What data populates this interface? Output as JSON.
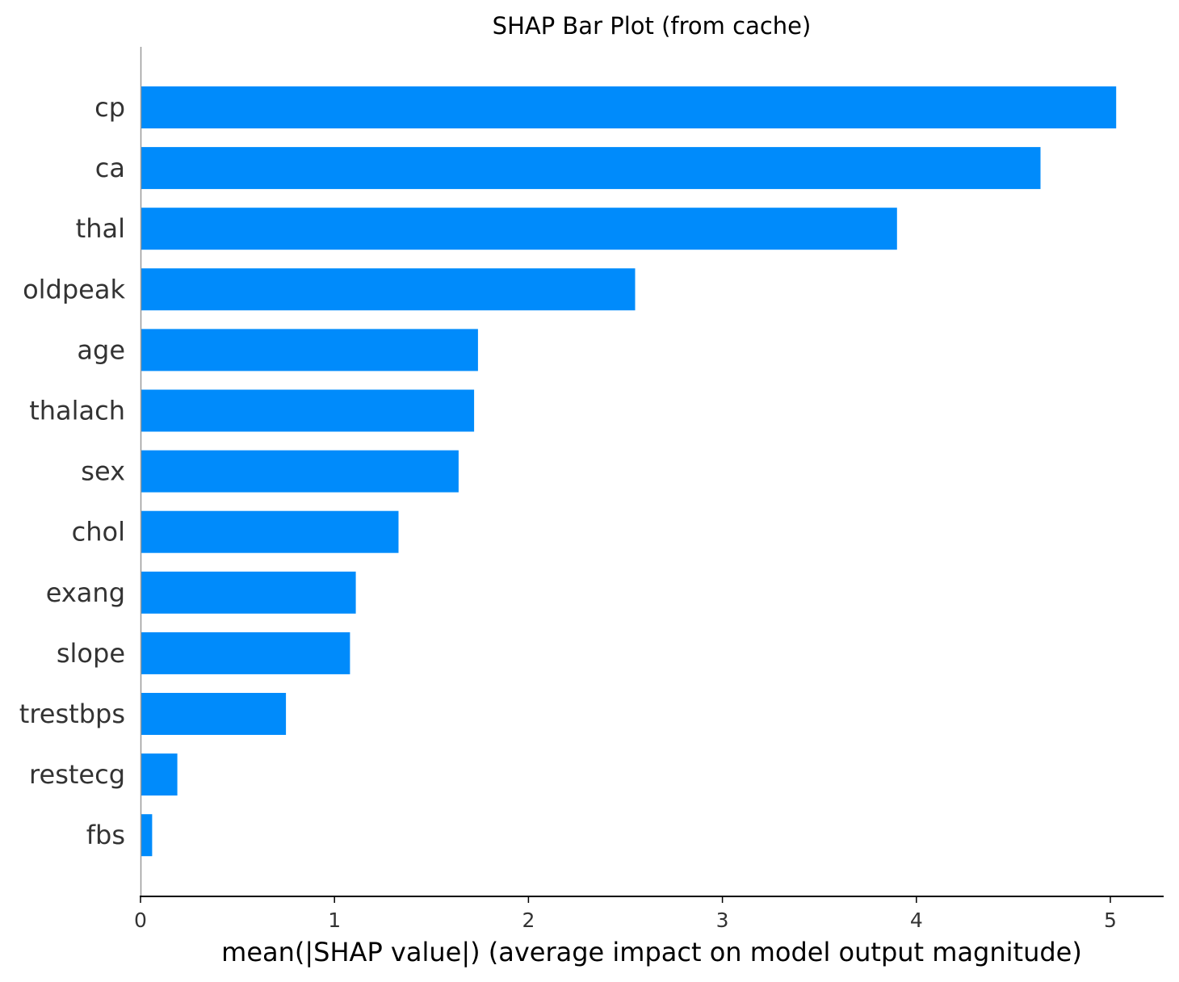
{
  "chart_data": {
    "type": "bar",
    "orientation": "horizontal",
    "title": "SHAP Bar Plot (from cache)",
    "xlabel": "mean(|SHAP value|) (average impact on model output magnitude)",
    "ylabel": "",
    "categories": [
      "cp",
      "ca",
      "thal",
      "oldpeak",
      "age",
      "thalach",
      "sex",
      "chol",
      "exang",
      "slope",
      "trestbps",
      "restecg",
      "fbs"
    ],
    "values": [
      5.03,
      4.64,
      3.9,
      2.55,
      1.74,
      1.72,
      1.64,
      1.33,
      1.11,
      1.08,
      0.75,
      0.19,
      0.06
    ],
    "xlim": [
      0,
      5.28
    ],
    "xticks": [
      0,
      1,
      2,
      3,
      4,
      5
    ],
    "xtick_labels": [
      "0",
      "1",
      "2",
      "3",
      "4",
      "5"
    ],
    "grid": false,
    "bar_color": "#008bfb",
    "axis_color": "#000000",
    "left_spine_color": "#999999"
  }
}
